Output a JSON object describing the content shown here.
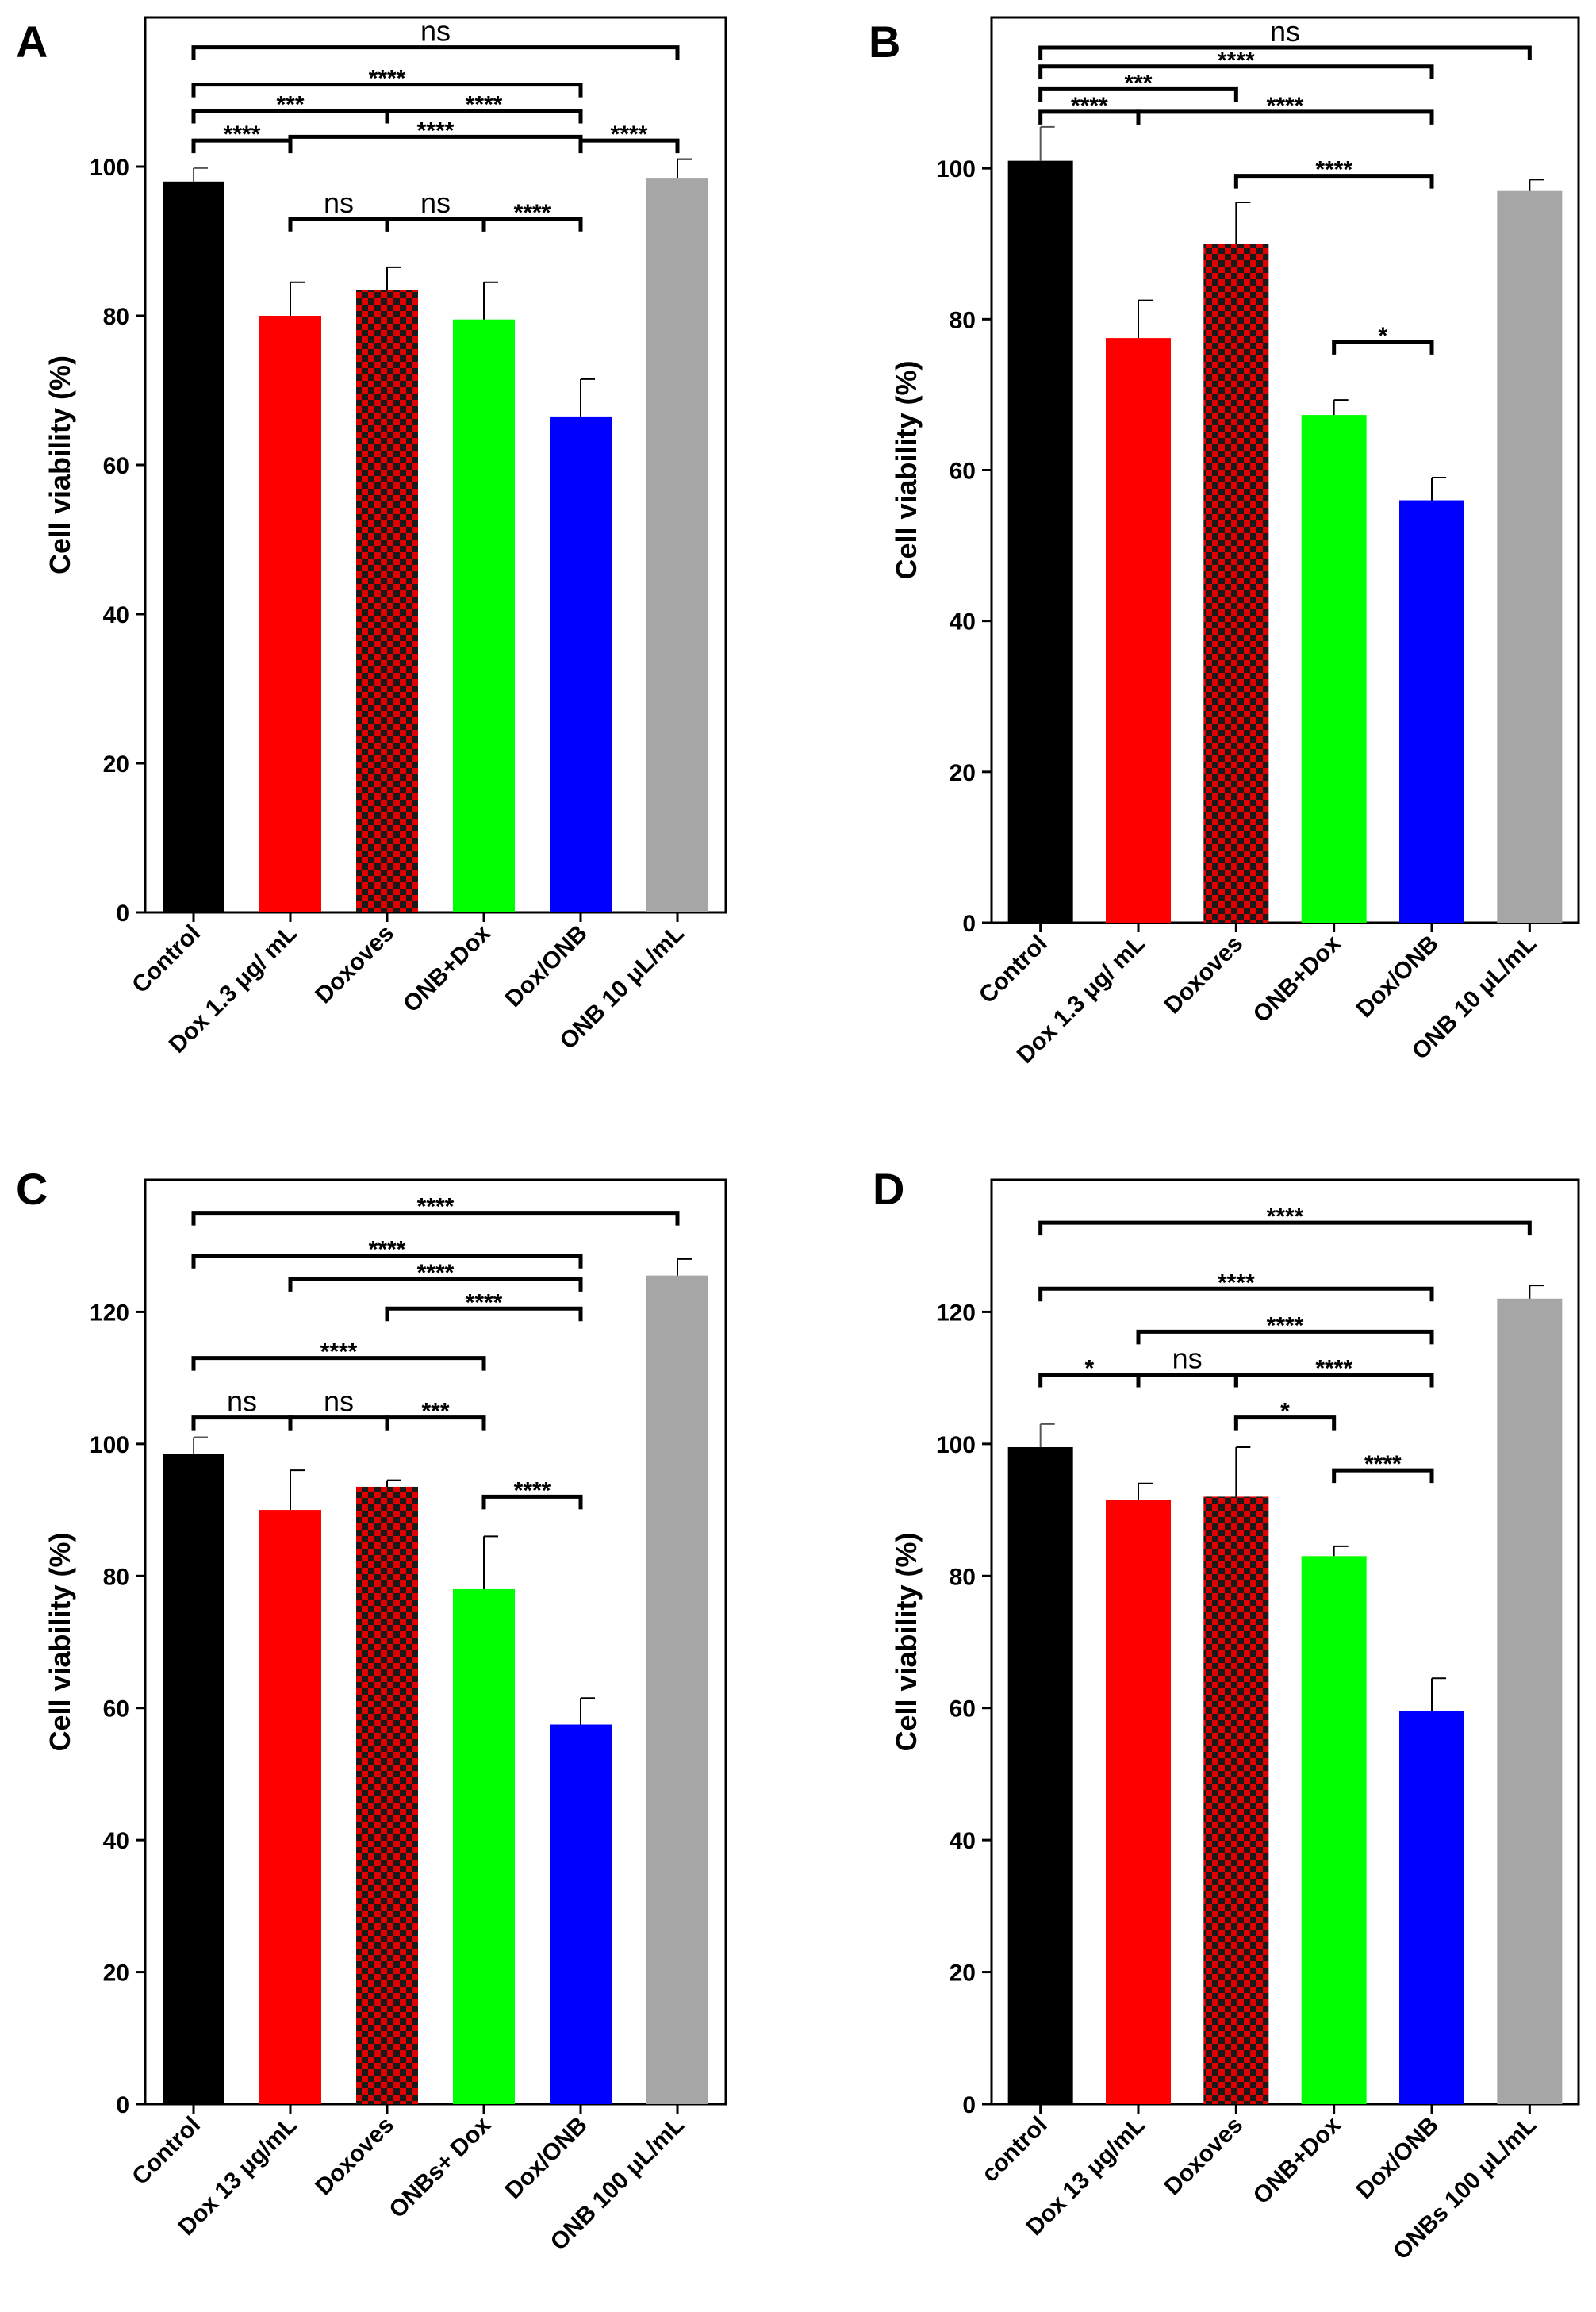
{
  "colors": {
    "black": "#000000",
    "red": "#ff0000",
    "checker_dark": "#1a1a1a",
    "checker_red": "#e00000",
    "green": "#00ff00",
    "blue": "#0000ff",
    "gray": "#a6a6a6"
  },
  "chart_data": [
    {
      "panel": "A",
      "type": "bar",
      "ylabel": "Cell viability (%)",
      "ylim": [
        0,
        120
      ],
      "yticks": [
        0,
        20,
        40,
        60,
        80,
        100
      ],
      "categories": [
        "Control",
        "Dox 1.3 μg/ mL",
        "Doxoves",
        "ONB+Dox",
        "Dox/ONB",
        "ONB 10 μL/mL"
      ],
      "values": [
        98,
        80,
        83.5,
        79.5,
        66.5,
        98.5
      ],
      "errors": [
        1.8,
        4.5,
        3,
        5,
        5,
        2.5
      ],
      "fills": [
        "black",
        "red",
        "checker",
        "green",
        "blue",
        "gray"
      ],
      "brackets": [
        {
          "from": 0,
          "to": 5,
          "label": "ns",
          "y": 116
        },
        {
          "from": 0,
          "to": 4,
          "label": "****",
          "y": 111
        },
        {
          "from": 0,
          "to": 2,
          "label": "***",
          "y": 107.5
        },
        {
          "from": 2,
          "to": 4,
          "label": "****",
          "y": 107.5
        },
        {
          "from": 0,
          "to": 1,
          "label": "****",
          "y": 103.5
        },
        {
          "from": 1,
          "to": 4,
          "label": "****",
          "y": 104
        },
        {
          "from": 4,
          "to": 5,
          "label": "****",
          "y": 103.5
        },
        {
          "from": 1,
          "to": 2,
          "label": "ns",
          "y": 93
        },
        {
          "from": 2,
          "to": 3,
          "label": "ns",
          "y": 93
        },
        {
          "from": 3,
          "to": 4,
          "label": "****",
          "y": 93
        }
      ]
    },
    {
      "panel": "B",
      "type": "bar",
      "ylabel": "Cell viability (%)",
      "ylim": [
        0,
        120
      ],
      "yticks": [
        0,
        20,
        40,
        60,
        80,
        100
      ],
      "categories": [
        "Control",
        "Dox 1.3 μg/ mL",
        "Doxoves",
        "ONB+Dox",
        "Dox/ONB",
        "ONB 10 μL/mL"
      ],
      "values": [
        101,
        77.5,
        90,
        67.3,
        56,
        97
      ],
      "errors": [
        4.5,
        5,
        5.5,
        2,
        3,
        1.5
      ],
      "fills": [
        "black",
        "red",
        "checker",
        "green",
        "blue",
        "gray"
      ],
      "brackets": [
        {
          "from": 0,
          "to": 5,
          "label": "ns",
          "y": 116
        },
        {
          "from": 0,
          "to": 4,
          "label": "****",
          "y": 113.5
        },
        {
          "from": 0,
          "to": 2,
          "label": "***",
          "y": 110.5
        },
        {
          "from": 0,
          "to": 1,
          "label": "****",
          "y": 107.5
        },
        {
          "from": 1,
          "to": 4,
          "label": "****",
          "y": 107.5
        },
        {
          "from": 2,
          "to": 4,
          "label": "****",
          "y": 99
        },
        {
          "from": 3,
          "to": 4,
          "label": "*",
          "y": 77
        }
      ]
    },
    {
      "panel": "C",
      "type": "bar",
      "ylabel": "Cell viability (%)",
      "ylim": [
        0,
        140
      ],
      "yticks": [
        0,
        20,
        40,
        60,
        80,
        100,
        120
      ],
      "categories": [
        "Control",
        "Dox 13 μg/mL",
        "Doxoves",
        "ONBs+ Dox",
        "Dox/ONB",
        "ONB 100 μL/mL"
      ],
      "values": [
        98.5,
        90,
        93.5,
        78,
        57.5,
        125.5
      ],
      "errors": [
        2.5,
        6,
        1,
        8,
        4,
        2.5
      ],
      "fills": [
        "black",
        "red",
        "checker",
        "green",
        "blue",
        "gray"
      ],
      "brackets": [
        {
          "from": 0,
          "to": 5,
          "label": "****",
          "y": 135
        },
        {
          "from": 0,
          "to": 4,
          "label": "****",
          "y": 128.5
        },
        {
          "from": 1,
          "to": 4,
          "label": "****",
          "y": 125
        },
        {
          "from": 2,
          "to": 4,
          "label": "****",
          "y": 120.5
        },
        {
          "from": 0,
          "to": 3,
          "label": "****",
          "y": 113
        },
        {
          "from": 0,
          "to": 1,
          "label": "ns",
          "y": 104
        },
        {
          "from": 1,
          "to": 2,
          "label": "ns",
          "y": 104
        },
        {
          "from": 2,
          "to": 3,
          "label": "***",
          "y": 104
        },
        {
          "from": 3,
          "to": 4,
          "label": "****",
          "y": 92
        }
      ]
    },
    {
      "panel": "D",
      "type": "bar",
      "ylabel": "Cell viability (%)",
      "ylim": [
        0,
        140
      ],
      "yticks": [
        0,
        20,
        40,
        60,
        80,
        100,
        120
      ],
      "categories": [
        "control",
        "Dox 13 μg/mL",
        "Doxoves",
        "ONB+Dox",
        "Dox/ONB",
        "ONBs 100 μL/mL"
      ],
      "values": [
        99.5,
        91.5,
        92,
        83,
        59.5,
        122
      ],
      "errors": [
        3.5,
        2.5,
        7.5,
        1.5,
        5,
        2
      ],
      "fills": [
        "black",
        "red",
        "checker",
        "green",
        "blue",
        "gray"
      ],
      "brackets": [
        {
          "from": 0,
          "to": 5,
          "label": "****",
          "y": 133.5
        },
        {
          "from": 0,
          "to": 4,
          "label": "****",
          "y": 123.5
        },
        {
          "from": 1,
          "to": 4,
          "label": "****",
          "y": 117
        },
        {
          "from": 0,
          "to": 1,
          "label": "*",
          "y": 110.5
        },
        {
          "from": 1,
          "to": 2,
          "label": "ns",
          "y": 110.5
        },
        {
          "from": 2,
          "to": 4,
          "label": "****",
          "y": 110.5
        },
        {
          "from": 2,
          "to": 3,
          "label": "*",
          "y": 104
        },
        {
          "from": 3,
          "to": 4,
          "label": "****",
          "y": 96
        }
      ]
    }
  ]
}
